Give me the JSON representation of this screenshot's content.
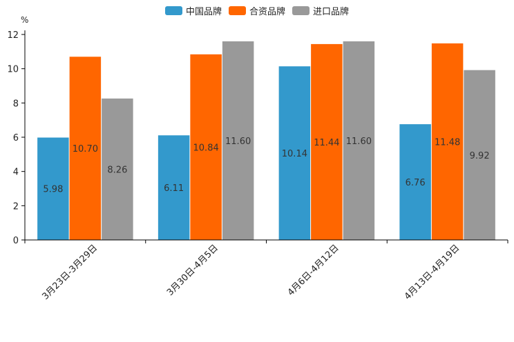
{
  "chart_data": {
    "type": "bar",
    "ylabel": "%",
    "ylim": [
      0,
      12
    ],
    "yticks": [
      0,
      2,
      4,
      6,
      8,
      10,
      12
    ],
    "categories": [
      "3月23日-3月29日",
      "3月30日-4月5日",
      "4月6日-4月12日",
      "4月13日-4月19日"
    ],
    "series": [
      {
        "name": "中国品牌",
        "color": "#3399cc",
        "values": [
          5.98,
          6.11,
          10.14,
          6.76
        ],
        "labels": [
          "5.98",
          "6.11",
          "10.14",
          "6.76"
        ]
      },
      {
        "name": "合资品牌",
        "color": "#ff6600",
        "values": [
          10.7,
          10.84,
          11.44,
          11.48
        ],
        "labels": [
          "10.70",
          "10.84",
          "11.44",
          "11.48"
        ]
      },
      {
        "name": "进口品牌",
        "color": "#999999",
        "values": [
          8.26,
          11.6,
          11.6,
          9.92
        ],
        "labels": [
          "8.26",
          "11.60",
          "11.60",
          "9.92"
        ]
      }
    ],
    "legend_position": "top-center",
    "grid": false
  }
}
